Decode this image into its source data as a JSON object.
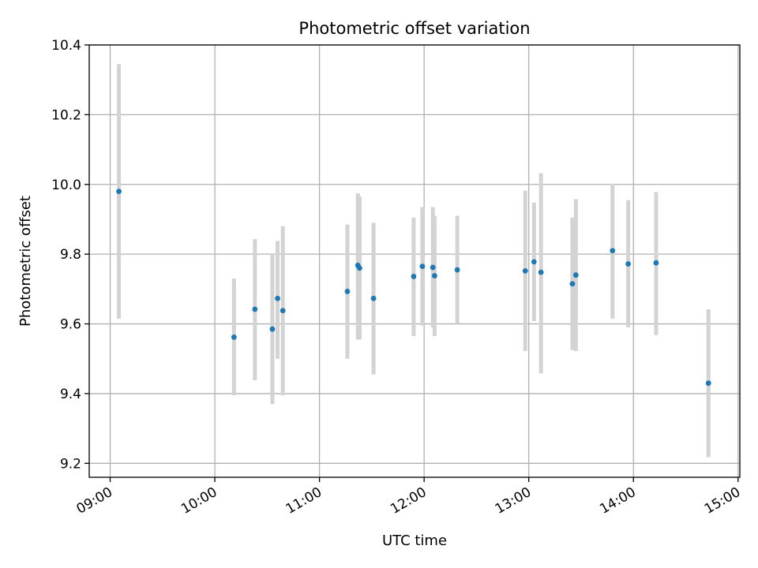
{
  "chart_data": {
    "type": "scatter",
    "title": "Photometric offset variation",
    "xlabel": "UTC time",
    "ylabel": "Photometric offset",
    "x_ticks": [
      "09:00",
      "10:00",
      "11:00",
      "12:00",
      "13:00",
      "14:00",
      "15:00"
    ],
    "y_ticks": [
      "9.2",
      "9.4",
      "9.6",
      "9.8",
      "10.0",
      "10.2",
      "10.4"
    ],
    "xlim": [
      "08:48",
      "15:01"
    ],
    "ylim": [
      9.16,
      10.4
    ],
    "grid": true,
    "colors": {
      "point": "#1f77b4",
      "errorbar": "#d3d3d3",
      "grid": "#b0b0b0"
    },
    "series": [
      {
        "points": [
          {
            "x": "09:05",
            "y": 9.98,
            "ylo": 9.615,
            "yhi": 10.345
          },
          {
            "x": "10:11",
            "y": 9.562,
            "ylo": 9.395,
            "yhi": 9.73
          },
          {
            "x": "10:23",
            "y": 9.642,
            "ylo": 9.438,
            "yhi": 9.843
          },
          {
            "x": "10:33",
            "y": 9.585,
            "ylo": 9.37,
            "yhi": 9.8
          },
          {
            "x": "10:36",
            "y": 9.673,
            "ylo": 9.5,
            "yhi": 9.838
          },
          {
            "x": "10:39",
            "y": 9.638,
            "ylo": 9.395,
            "yhi": 9.88
          },
          {
            "x": "11:16",
            "y": 9.693,
            "ylo": 9.5,
            "yhi": 9.885
          },
          {
            "x": "11:22",
            "y": 9.768,
            "ylo": 9.555,
            "yhi": 9.975
          },
          {
            "x": "11:23",
            "y": 9.76,
            "ylo": 9.555,
            "yhi": 9.965
          },
          {
            "x": "11:31",
            "y": 9.673,
            "ylo": 9.455,
            "yhi": 9.89
          },
          {
            "x": "11:54",
            "y": 9.736,
            "ylo": 9.565,
            "yhi": 9.905
          },
          {
            "x": "11:59",
            "y": 9.765,
            "ylo": 9.595,
            "yhi": 9.935
          },
          {
            "x": "12:05",
            "y": 9.762,
            "ylo": 9.59,
            "yhi": 9.935
          },
          {
            "x": "12:06",
            "y": 9.738,
            "ylo": 9.565,
            "yhi": 9.91
          },
          {
            "x": "12:19",
            "y": 9.755,
            "ylo": 9.6,
            "yhi": 9.91
          },
          {
            "x": "12:58",
            "y": 9.752,
            "ylo": 9.522,
            "yhi": 9.982
          },
          {
            "x": "13:03",
            "y": 9.778,
            "ylo": 9.608,
            "yhi": 9.948
          },
          {
            "x": "13:07",
            "y": 9.748,
            "ylo": 9.458,
            "yhi": 10.032
          },
          {
            "x": "13:25",
            "y": 9.715,
            "ylo": 9.525,
            "yhi": 9.905
          },
          {
            "x": "13:27",
            "y": 9.74,
            "ylo": 9.522,
            "yhi": 9.958
          },
          {
            "x": "13:48",
            "y": 9.81,
            "ylo": 9.615,
            "yhi": 10.002
          },
          {
            "x": "13:57",
            "y": 9.772,
            "ylo": 9.59,
            "yhi": 9.955
          },
          {
            "x": "14:13",
            "y": 9.775,
            "ylo": 9.568,
            "yhi": 9.978
          },
          {
            "x": "14:43",
            "y": 9.43,
            "ylo": 9.218,
            "yhi": 9.642
          }
        ]
      }
    ]
  }
}
